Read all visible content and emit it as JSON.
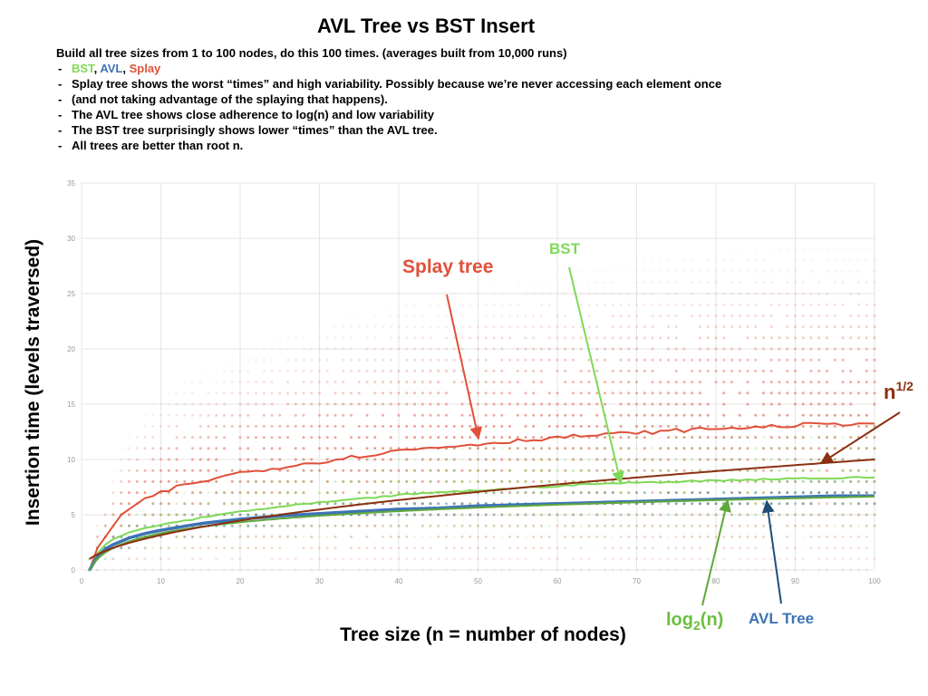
{
  "slide": {
    "title": "AVL Tree vs BST Insert",
    "intro": "Build all tree sizes from 1 to 100 nodes, do this 100 times. (averages built from 10,000 runs)",
    "legend_line": {
      "bst": "BST",
      "sep1": ", ",
      "avl": "AVL",
      "sep2": ", ",
      "splay": "Splay"
    },
    "bullets": [
      "Splay tree shows the worst “times” and high variability. Possibly because we’re never accessing each element once",
      "(and not taking advantage of the splaying that happens).",
      "The AVL tree shows close adherence to log(n) and low variability",
      "The BST tree surprisingly shows lower “times” than the AVL tree.",
      "All trees are better than root n."
    ]
  },
  "colors": {
    "splay": "#e0503a",
    "bst": "#7ed957",
    "avl": "#3d73b5",
    "avl_annotation": "#1f4e79",
    "log2": "#5fa83a",
    "log2_label": "#6abf3e",
    "sqrt": "#8b2f12",
    "grid": "#e6e6e6",
    "axis_text": "#999999"
  },
  "chart_data": {
    "type": "line",
    "xlabel": "Tree size (n = number of nodes)",
    "ylabel": "Insertion time (levels traversed)",
    "xlim": [
      0,
      100
    ],
    "ylim": [
      0,
      35
    ],
    "x_ticks": [
      0,
      10,
      20,
      30,
      40,
      50,
      60,
      70,
      80,
      90,
      100
    ],
    "y_ticks": [
      0,
      5,
      10,
      15,
      20,
      25,
      30,
      35
    ],
    "grid": true,
    "scatter_background": "dots at integer levels per tree size, semi-transparent, for Splay, BST and AVL runs",
    "series": [
      {
        "name": "Splay tree",
        "key": "splay",
        "x": [
          1,
          2,
          3,
          4,
          5,
          6,
          7,
          8,
          10,
          12,
          15,
          20,
          25,
          30,
          35,
          40,
          45,
          50,
          55,
          60,
          65,
          70,
          75,
          80,
          85,
          90,
          95,
          100
        ],
        "values": [
          0,
          2,
          3,
          4,
          5,
          5.5,
          6,
          6.5,
          7,
          7.5,
          8,
          8.8,
          9.3,
          9.8,
          10.3,
          10.8,
          11.1,
          11.4,
          11.7,
          12,
          12.2,
          12.4,
          12.6,
          12.8,
          12.9,
          13.1,
          13.2,
          13.3
        ]
      },
      {
        "name": "BST",
        "key": "bst",
        "x": [
          1,
          2,
          3,
          4,
          5,
          6,
          8,
          10,
          15,
          20,
          25,
          30,
          35,
          40,
          45,
          50,
          55,
          60,
          65,
          70,
          75,
          80,
          85,
          90,
          95,
          100
        ],
        "values": [
          0,
          1.5,
          2.3,
          2.8,
          3.1,
          3.4,
          3.8,
          4.1,
          4.7,
          5.3,
          5.7,
          6.1,
          6.4,
          6.8,
          7,
          7.2,
          7.4,
          7.6,
          7.8,
          7.9,
          8,
          8.1,
          8.2,
          8.3,
          8.3,
          8.4
        ]
      },
      {
        "name": "AVL Tree",
        "key": "avl",
        "x": [
          1,
          2,
          3,
          4,
          5,
          6,
          8,
          10,
          15,
          20,
          25,
          30,
          35,
          40,
          45,
          50,
          55,
          60,
          65,
          70,
          75,
          80,
          85,
          90,
          95,
          100
        ],
        "values": [
          0,
          1.2,
          1.9,
          2.3,
          2.6,
          2.9,
          3.3,
          3.6,
          4.2,
          4.6,
          4.9,
          5.1,
          5.3,
          5.5,
          5.6,
          5.8,
          5.9,
          6,
          6.1,
          6.2,
          6.3,
          6.4,
          6.5,
          6.6,
          6.7,
          6.7
        ]
      },
      {
        "name": "log2(n)",
        "key": "log2",
        "formula": "log2"
      },
      {
        "name": "n1/2",
        "key": "sqrt",
        "formula": "sqrt"
      }
    ],
    "annotations": {
      "splay": "Splay tree",
      "bst": "BST",
      "sqrt_base": "n",
      "sqrt_exp": "1/2",
      "log2_pre": "log",
      "log2_sub": "2",
      "log2_post": "(n)",
      "avl": "AVL Tree"
    }
  }
}
